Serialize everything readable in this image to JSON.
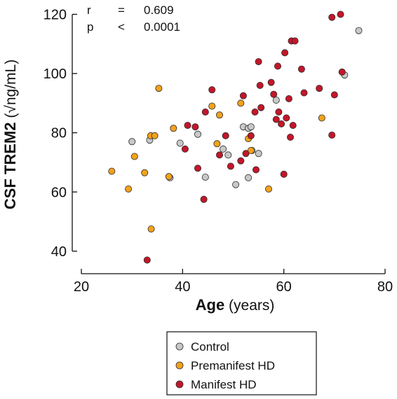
{
  "chart_data": {
    "type": "scatter",
    "xlabel_bold": "Age",
    "xlabel_rest": " (years)",
    "ylabel_bold": "CSF TREM2",
    "ylabel_rest": " (√ng/mL)",
    "xlim": [
      20,
      80
    ],
    "ylim": [
      35,
      122
    ],
    "xticks": [
      20,
      40,
      60,
      80
    ],
    "yticks": [
      40,
      60,
      80,
      100,
      120
    ],
    "grid": false,
    "legend_position": "bottom-center",
    "stats": {
      "r_label": "r",
      "r_op": "=",
      "r_value": "0.609",
      "p_label": "p",
      "p_op": "<",
      "p_value": "0.0001"
    },
    "series": [
      {
        "name": "Control",
        "color": "#c8c8c8",
        "points": [
          [
            30,
            77
          ],
          [
            33.5,
            77.5
          ],
          [
            37.5,
            64.8
          ],
          [
            39.5,
            76.5
          ],
          [
            43,
            79.5
          ],
          [
            44.5,
            65
          ],
          [
            48,
            74.5
          ],
          [
            49,
            72.5
          ],
          [
            50.5,
            62.5
          ],
          [
            52,
            82
          ],
          [
            53,
            81.5
          ],
          [
            53.5,
            82
          ],
          [
            53.7,
            74
          ],
          [
            55,
            73
          ],
          [
            58.5,
            91
          ],
          [
            72,
            99.5
          ],
          [
            74.8,
            114.5
          ],
          [
            53,
            64.8
          ]
        ]
      },
      {
        "name": "Premanifest HD",
        "color": "#f2a21c",
        "points": [
          [
            26,
            67
          ],
          [
            29.3,
            61
          ],
          [
            30.5,
            72
          ],
          [
            32.5,
            66.5
          ],
          [
            33.7,
            79
          ],
          [
            34.5,
            79
          ],
          [
            33.8,
            47.5
          ],
          [
            35.3,
            95
          ],
          [
            37.3,
            65.2
          ],
          [
            38.2,
            81.5
          ],
          [
            45.8,
            89
          ],
          [
            46.8,
            76.3
          ],
          [
            47.3,
            86
          ],
          [
            51.5,
            90
          ],
          [
            53,
            78
          ],
          [
            53.5,
            74
          ],
          [
            57,
            61
          ],
          [
            67.5,
            85
          ]
        ]
      },
      {
        "name": "Manifest HD",
        "color": "#c4162a",
        "points": [
          [
            33,
            37
          ],
          [
            40.5,
            74.5
          ],
          [
            41,
            82.5
          ],
          [
            42.5,
            82
          ],
          [
            43,
            68
          ],
          [
            44.2,
            57.5
          ],
          [
            44.5,
            87
          ],
          [
            45.8,
            94.5
          ],
          [
            47.3,
            72.5
          ],
          [
            48.5,
            79
          ],
          [
            49.5,
            68.7
          ],
          [
            51.5,
            70.5
          ],
          [
            52,
            92.5
          ],
          [
            52.5,
            73
          ],
          [
            53.5,
            79
          ],
          [
            54.3,
            87
          ],
          [
            54.5,
            67.5
          ],
          [
            55,
            104
          ],
          [
            55.3,
            96
          ],
          [
            55.5,
            88.5
          ],
          [
            57.5,
            97
          ],
          [
            58,
            93
          ],
          [
            58.5,
            84.5
          ],
          [
            58.8,
            102.5
          ],
          [
            59,
            87
          ],
          [
            59.5,
            83
          ],
          [
            60,
            66
          ],
          [
            60.2,
            107
          ],
          [
            60.5,
            85
          ],
          [
            61,
            91.5
          ],
          [
            61.3,
            78.5
          ],
          [
            61.5,
            111
          ],
          [
            61.8,
            82.5
          ],
          [
            62.2,
            111
          ],
          [
            63.5,
            101.5
          ],
          [
            64,
            93.5
          ],
          [
            67,
            95
          ],
          [
            69.5,
            79.2
          ],
          [
            69.5,
            119
          ],
          [
            70,
            92.8
          ],
          [
            71.2,
            120
          ],
          [
            71.5,
            100.5
          ]
        ]
      }
    ]
  }
}
